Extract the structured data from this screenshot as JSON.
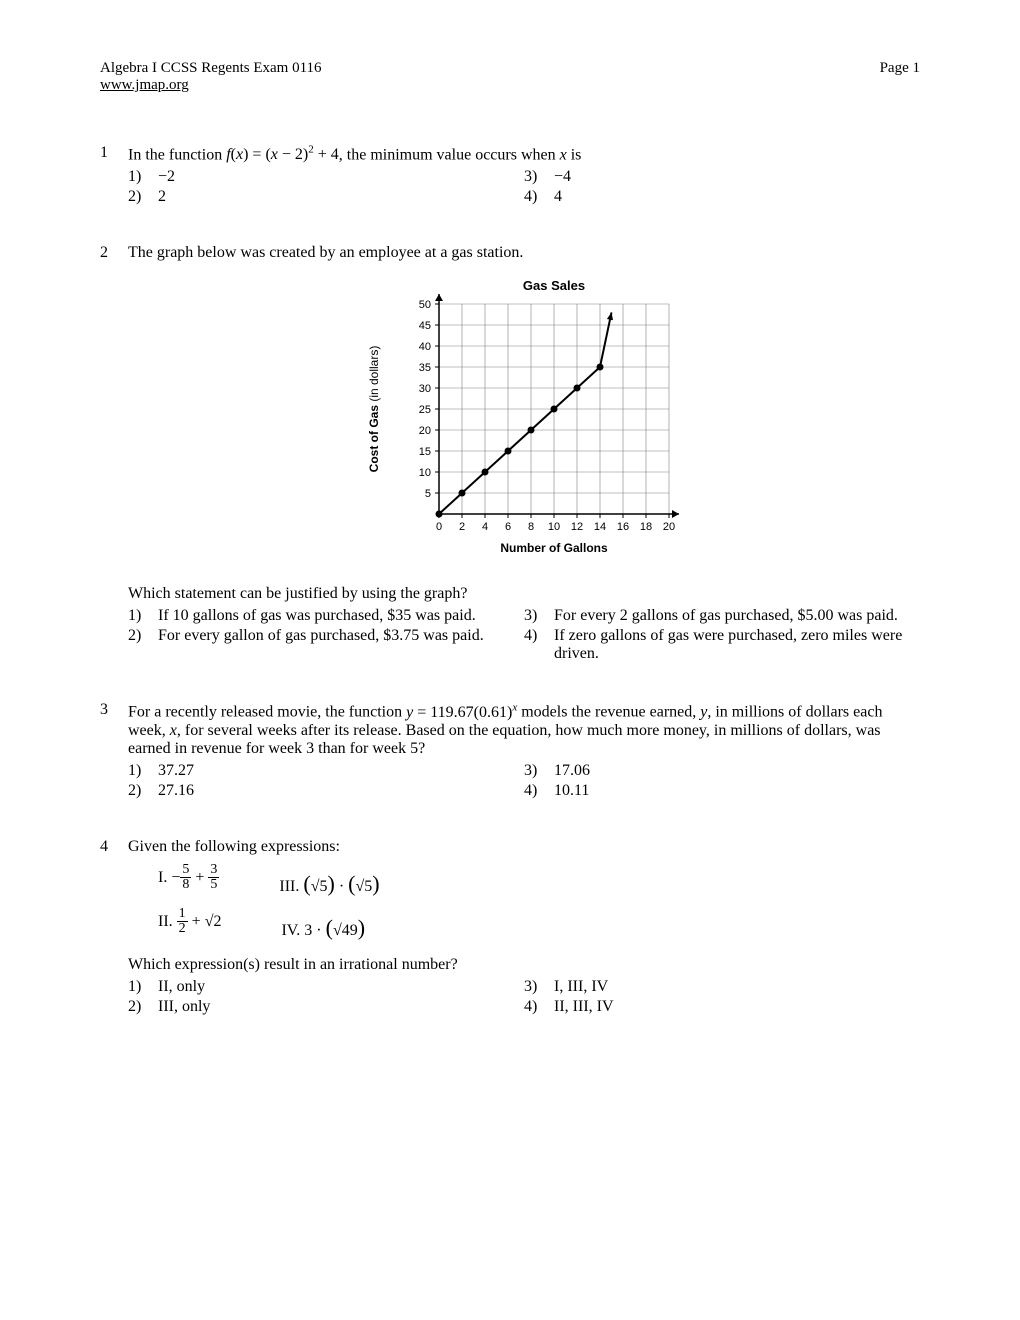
{
  "header": {
    "title": "Algebra I CCSS Regents Exam 0116",
    "link": "www.jmap.org",
    "page": "Page 1"
  },
  "q1": {
    "num": "1",
    "text_pre": "In the function ",
    "formula": "f(x) = (x − 2)² + 4",
    "text_post": ", the minimum value occurs when ",
    "text_var": "x",
    "text_end": " is",
    "opts": {
      "1": "−2",
      "2": "2",
      "3": "−4",
      "4": "4"
    }
  },
  "q2": {
    "num": "2",
    "text": "The graph below was created by an employee at a gas station.",
    "subtext": "Which statement can be justified by using the graph?",
    "opts": {
      "1": "If 10 gallons of gas was purchased, $35 was paid.",
      "2": "For every gallon of gas purchased, $3.75 was paid.",
      "3": "For every 2 gallons of gas purchased, $5.00 was paid.",
      "4": "If zero gallons of gas were purchased, zero miles were driven."
    },
    "chart": {
      "type": "line",
      "title": "Gas Sales",
      "title_fontsize": 13,
      "xlabel": "Number of Gallons",
      "ylabel": "Cost of Gas (in dollars)",
      "label_fontsize": 12,
      "xlim": [
        0,
        20
      ],
      "xtick_step": 2,
      "ylim": [
        0,
        50
      ],
      "ytick_step": 5,
      "points_x": [
        0,
        2,
        4,
        6,
        8,
        10,
        12,
        14,
        15
      ],
      "points_y": [
        0,
        5,
        10,
        15,
        20,
        25,
        30,
        35,
        48
      ],
      "line_color": "#000000",
      "line_width": 2,
      "marker_size": 3.5,
      "background_color": "#ffffff",
      "grid_color": "#808080",
      "axis_color": "#000000"
    }
  },
  "q3": {
    "num": "3",
    "text_pre": "For a recently released movie, the function ",
    "formula_base": "y = 119.67(0.61)",
    "formula_exp": "x",
    "text_mid": " models the revenue earned, ",
    "text_y": "y",
    "text_after_y": ", in millions of dollars each week, ",
    "text_x": "x",
    "text_post": ", for several weeks after its release.  Based on the equation, how much more money, in millions of dollars, was earned in revenue for week 3 than for week 5?",
    "opts": {
      "1": "37.27",
      "2": "27.16",
      "3": "17.06",
      "4": "10.11"
    }
  },
  "q4": {
    "num": "4",
    "text": "Given the following expressions:",
    "subtext": "Which expression(s) result in an irrational number?",
    "opts": {
      "1": "II, only",
      "2": "III, only",
      "3": "I, III, IV",
      "4": "II, III, IV"
    },
    "expr": {
      "I_label": "I.",
      "III_label": "III.",
      "II_label": "II.",
      "IV_label": "IV."
    }
  }
}
